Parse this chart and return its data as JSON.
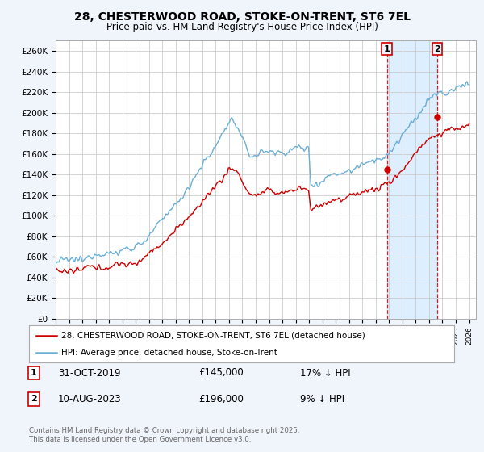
{
  "title": "28, CHESTERWOOD ROAD, STOKE-ON-TRENT, ST6 7EL",
  "subtitle": "Price paid vs. HM Land Registry's House Price Index (HPI)",
  "ylim": [
    0,
    270000
  ],
  "xlim_start": 1995.0,
  "xlim_end": 2026.5,
  "yticks": [
    0,
    20000,
    40000,
    60000,
    80000,
    100000,
    120000,
    140000,
    160000,
    180000,
    200000,
    220000,
    240000,
    260000
  ],
  "ytick_labels": [
    "£0",
    "£20K",
    "£40K",
    "£60K",
    "£80K",
    "£100K",
    "£120K",
    "£140K",
    "£160K",
    "£180K",
    "£200K",
    "£220K",
    "£240K",
    "£260K"
  ],
  "hpi_color": "#6aaed6",
  "price_color": "#cc0000",
  "shade_color": "#ddeeff",
  "marker1_x": 2019.83,
  "marker1_y": 145000,
  "marker2_x": 2023.61,
  "marker2_y": 196000,
  "marker1_date": "31-OCT-2019",
  "marker1_price": "£145,000",
  "marker1_note": "17% ↓ HPI",
  "marker2_date": "10-AUG-2023",
  "marker2_price": "£196,000",
  "marker2_note": "9% ↓ HPI",
  "legend_line1": "28, CHESTERWOOD ROAD, STOKE-ON-TRENT, ST6 7EL (detached house)",
  "legend_line2": "HPI: Average price, detached house, Stoke-on-Trent",
  "footnote": "Contains HM Land Registry data © Crown copyright and database right 2025.\nThis data is licensed under the Open Government Licence v3.0.",
  "background_color": "#f0f4fb",
  "plot_bg_color": "#ffffff",
  "grid_color": "#cccccc"
}
